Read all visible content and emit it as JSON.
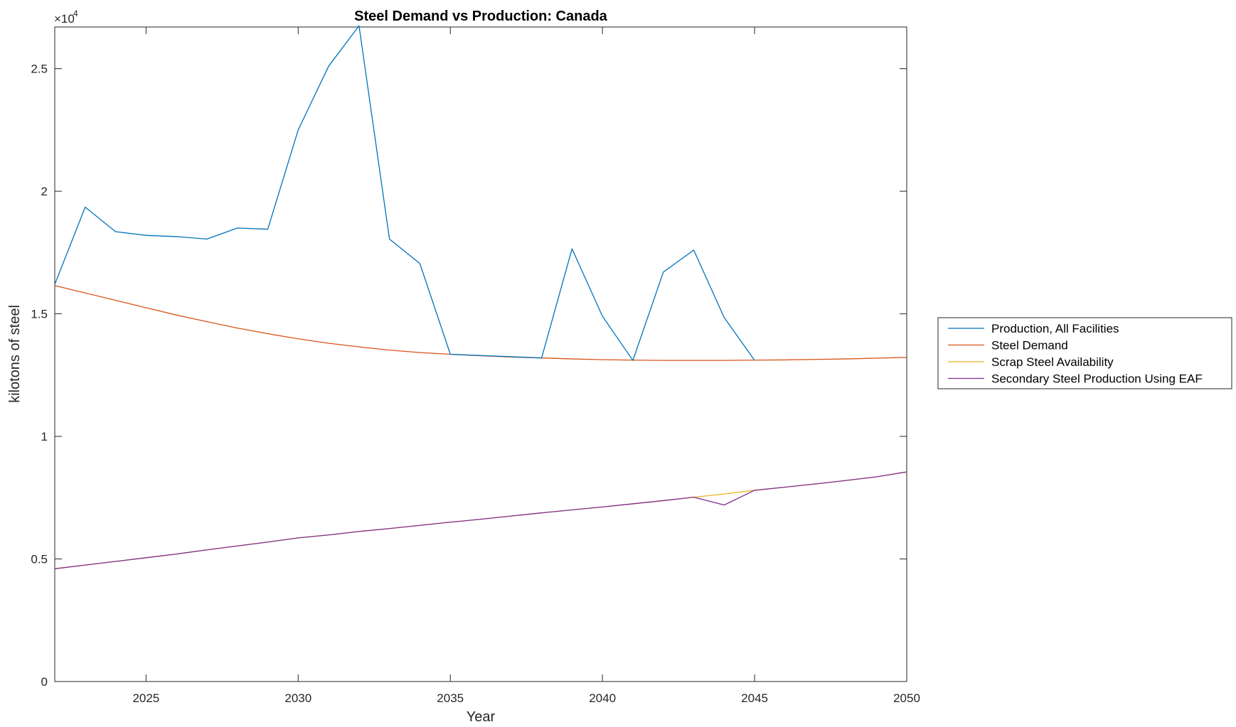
{
  "chart_data": {
    "type": "line",
    "title": "Steel Demand vs Production: Canada",
    "xlabel": "Year",
    "ylabel": "kilotons of steel",
    "y_exponent_label": "×10",
    "y_exponent_power": "4",
    "xlim": [
      2022,
      2050
    ],
    "ylim": [
      0,
      26700
    ],
    "x_ticks": [
      2025,
      2030,
      2035,
      2040,
      2045,
      2050
    ],
    "y_ticks": [
      0,
      5000,
      10000,
      15000,
      20000,
      25000
    ],
    "y_tick_labels": [
      "0",
      "0.5",
      "1",
      "1.5",
      "2",
      "2.5"
    ],
    "grid": false,
    "legend_position": "outside-right",
    "series": [
      {
        "name": "Production, All Facilities",
        "color": "#0072BD",
        "x": [
          2022,
          2023,
          2024,
          2025,
          2026,
          2027,
          2028,
          2029,
          2030,
          2031,
          2032,
          2033,
          2034,
          2035,
          2036,
          2037,
          2038,
          2039,
          2040,
          2041,
          2042,
          2043,
          2044,
          2045
        ],
        "values": [
          16200,
          19350,
          18350,
          18200,
          18150,
          18050,
          18500,
          18450,
          22500,
          25100,
          26750,
          18050,
          17050,
          13350,
          13300,
          13250,
          13200,
          17650,
          14900,
          13100,
          16700,
          17600,
          14850,
          13100
        ]
      },
      {
        "name": "Steel Demand",
        "color": "#D95319",
        "x": [
          2022,
          2023,
          2024,
          2025,
          2026,
          2027,
          2028,
          2029,
          2030,
          2031,
          2032,
          2033,
          2034,
          2035,
          2036,
          2037,
          2038,
          2039,
          2040,
          2041,
          2042,
          2043,
          2044,
          2045,
          2046,
          2047,
          2048,
          2049,
          2050
        ],
        "values": [
          16150,
          15850,
          15550,
          15250,
          14950,
          14680,
          14420,
          14190,
          13980,
          13800,
          13650,
          13520,
          13420,
          13350,
          13290,
          13240,
          13200,
          13160,
          13130,
          13110,
          13100,
          13100,
          13100,
          13110,
          13120,
          13140,
          13160,
          13190,
          13220
        ]
      },
      {
        "name": "Scrap Steel Availability",
        "color": "#EDB120",
        "x": [
          2022,
          2023,
          2024,
          2025,
          2026,
          2027,
          2028,
          2029,
          2030,
          2031,
          2032,
          2033,
          2034,
          2035,
          2036,
          2037,
          2038,
          2039,
          2040,
          2041,
          2042,
          2043,
          2044,
          2045,
          2046,
          2047,
          2048,
          2049,
          2050
        ],
        "values": [
          4600,
          4750,
          4900,
          5050,
          5200,
          5370,
          5530,
          5690,
          5860,
          5980,
          6120,
          6240,
          6370,
          6500,
          6620,
          6750,
          6880,
          7000,
          7120,
          7250,
          7380,
          7520,
          7650,
          7800,
          7930,
          8060,
          8200,
          8350,
          8550
        ]
      },
      {
        "name": "Secondary Steel Production Using EAF",
        "color": "#7E2F8E",
        "x": [
          2022,
          2023,
          2024,
          2025,
          2026,
          2027,
          2028,
          2029,
          2030,
          2031,
          2032,
          2033,
          2034,
          2035,
          2036,
          2037,
          2038,
          2039,
          2040,
          2041,
          2042,
          2043,
          2044,
          2045,
          2046,
          2047,
          2048,
          2049,
          2050
        ],
        "values": [
          4600,
          4750,
          4900,
          5050,
          5200,
          5370,
          5530,
          5690,
          5860,
          5980,
          6120,
          6240,
          6370,
          6500,
          6620,
          6750,
          6880,
          7000,
          7120,
          7250,
          7380,
          7520,
          7200,
          7800,
          7930,
          8060,
          8200,
          8350,
          8550
        ]
      }
    ]
  }
}
